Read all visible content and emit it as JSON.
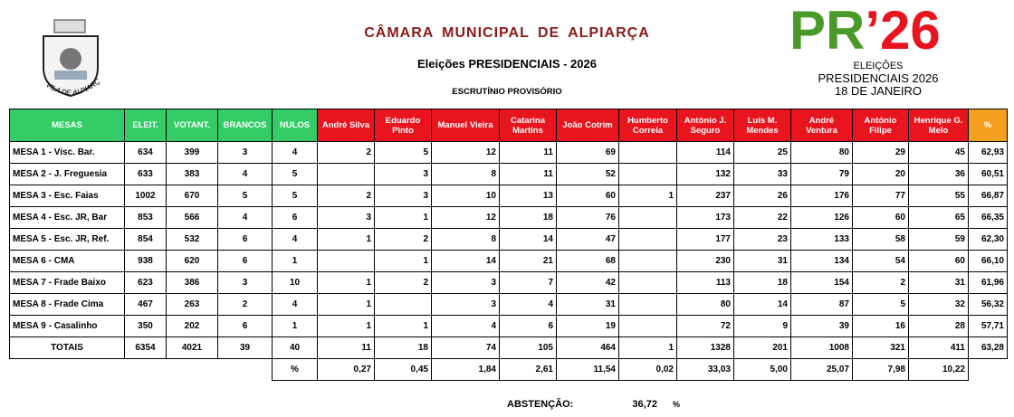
{
  "header": {
    "title": "CÂMARA MUNICIPAL DE ALPIARÇA",
    "subtitle": "Eleições PRESIDENCIAIS - 2026",
    "status": "ESCRUTÍNIO PROVISÓRIO",
    "crest_text": "VILA DE ALPIARÇA"
  },
  "logo": {
    "parts": [
      "PR",
      "’",
      "26"
    ],
    "lines": [
      "ELEIÇÕES",
      "PRESIDENCIAIS 2026",
      "18 DE JANEIRO"
    ]
  },
  "table": {
    "columns": [
      "MESAS",
      "ELEIT.",
      "VOTANT.",
      "BRANCOS",
      "NULOS",
      "André Silva",
      "Eduardo Pinto",
      "Manuel Vieira",
      "Catarina Martins",
      "João Cotrim",
      "Humberto Correia",
      "António J. Seguro",
      "Luís M. Mendes",
      "André Ventura",
      "António Filipe",
      "Henrique G. Melo",
      "%"
    ],
    "rows": [
      [
        "MESA 1 - Visc. Bar.",
        634,
        399,
        3,
        4,
        2,
        5,
        12,
        11,
        69,
        null,
        114,
        25,
        80,
        29,
        45,
        "62,93"
      ],
      [
        "MESA 2 - J. Freguesia",
        633,
        383,
        4,
        5,
        null,
        3,
        8,
        11,
        52,
        null,
        132,
        33,
        79,
        20,
        36,
        "60,51"
      ],
      [
        "MESA 3 - Esc. Faias",
        1002,
        670,
        5,
        5,
        2,
        3,
        10,
        13,
        60,
        1,
        237,
        26,
        176,
        77,
        55,
        "66,87"
      ],
      [
        "MESA 4 - Esc. JR, Bar",
        853,
        566,
        4,
        6,
        3,
        1,
        12,
        18,
        76,
        null,
        173,
        22,
        126,
        60,
        65,
        "66,35"
      ],
      [
        "MESA 5 - Esc. JR, Ref.",
        854,
        532,
        6,
        4,
        1,
        2,
        8,
        14,
        47,
        null,
        177,
        23,
        133,
        58,
        59,
        "62,30"
      ],
      [
        "MESA 6 - CMA",
        938,
        620,
        6,
        1,
        null,
        1,
        14,
        21,
        68,
        null,
        230,
        31,
        134,
        54,
        60,
        "66,10"
      ],
      [
        "MESA 7 - Frade Baixo",
        623,
        386,
        3,
        10,
        1,
        2,
        3,
        7,
        42,
        null,
        113,
        18,
        154,
        2,
        31,
        "61,96"
      ],
      [
        "MESA 8 - Frade Cima",
        467,
        263,
        2,
        4,
        1,
        null,
        3,
        4,
        31,
        null,
        80,
        14,
        87,
        5,
        32,
        "56,32"
      ],
      [
        "MESA 9 - Casalinho",
        350,
        202,
        6,
        1,
        1,
        1,
        4,
        6,
        19,
        null,
        72,
        9,
        39,
        16,
        28,
        "57,71"
      ],
      [
        "TOTAIS",
        6354,
        4021,
        39,
        40,
        11,
        18,
        74,
        105,
        464,
        1,
        1328,
        201,
        1008,
        321,
        411,
        "63,28"
      ]
    ],
    "percent_row": [
      "%",
      "0,27",
      "0,45",
      "1,84",
      "2,61",
      "11,54",
      "0,02",
      "33,03",
      "5,00",
      "25,07",
      "7,98",
      "10,22"
    ]
  },
  "abstention": {
    "label": "ABSTENÇÃO:",
    "value": "36,72",
    "unit": "%"
  }
}
